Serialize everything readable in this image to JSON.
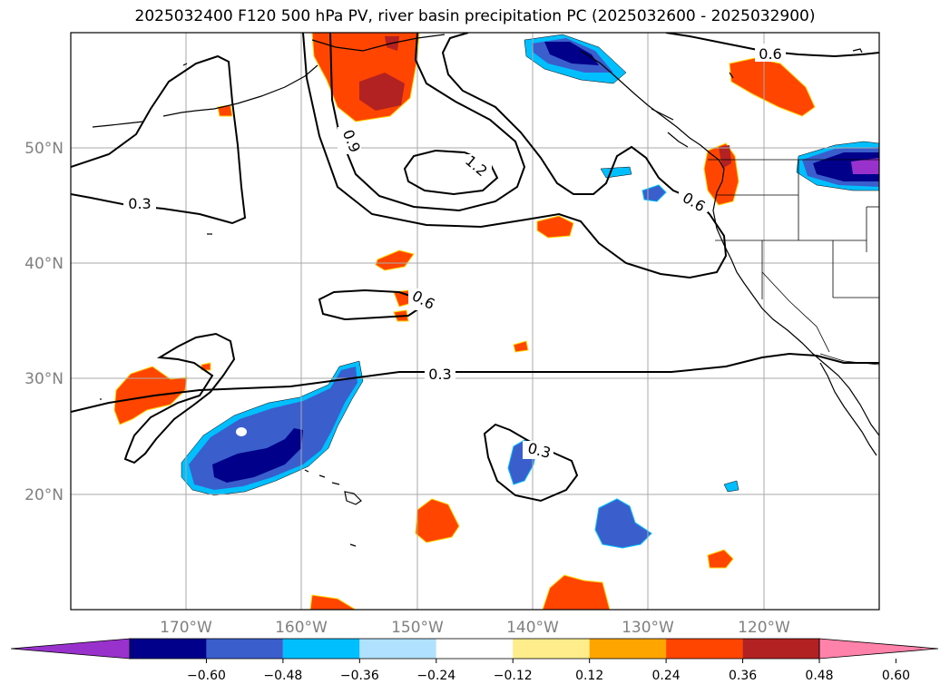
{
  "title": "2025032400 F120 500 hPa PV, river basin precipitation PC (2025032600 - 2025032900)",
  "map": {
    "lat_labels": [
      "50°N",
      "40°N",
      "30°N",
      "20°N"
    ],
    "lon_labels": [
      "170°W",
      "160°W",
      "150°W",
      "140°W",
      "130°W",
      "120°W"
    ],
    "contour_labels": [
      "0.6",
      "0.9",
      "1.2",
      "0.3",
      "0.6",
      "0.6",
      "0.3",
      "0.3"
    ],
    "grid_color": "#aaaaaa",
    "land_color": "#ffffff"
  },
  "colorbar": {
    "ticks": [
      "−0.60",
      "−0.48",
      "−0.36",
      "−0.24",
      "−0.12",
      "0.12",
      "0.24",
      "0.36",
      "0.48",
      "0.60"
    ],
    "colors": [
      "#9932cc",
      "#00008b",
      "#3a5fcd",
      "#00bfff",
      "#b0e2ff",
      "#ffffff",
      "#ffec8b",
      "#ffa500",
      "#ff4500",
      "#b22222",
      "#ff82ab"
    ]
  }
}
